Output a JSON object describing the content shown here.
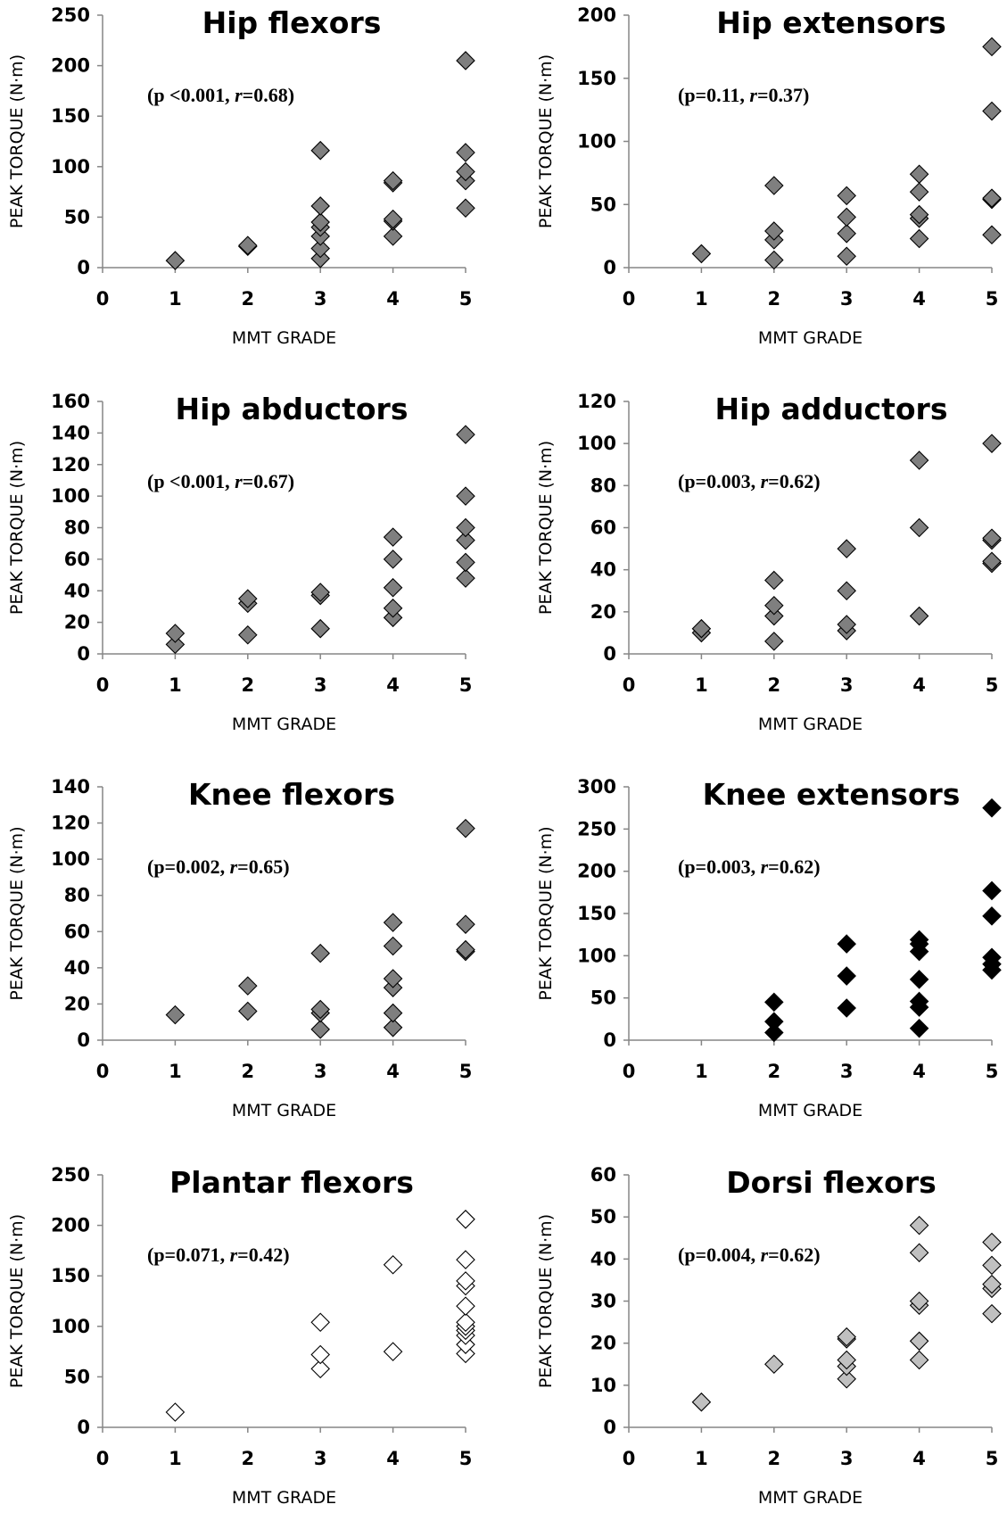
{
  "chart_data": [
    {
      "type": "scatter",
      "title": "Hip flexors",
      "xlabel": "MMT GRADE",
      "ylabel": "PEAK TORQUE (N·m)",
      "annotation": {
        "prefix": "(p <0.001, ",
        "r_symbol": "r",
        "suffix": "=0.68)"
      },
      "xlim": [
        0,
        5
      ],
      "ylim": [
        0,
        250
      ],
      "yticks": [
        0,
        50,
        100,
        150,
        200,
        250
      ],
      "xticks": [
        0,
        1,
        2,
        3,
        4,
        5
      ],
      "marker_fill": "#7f7f7f",
      "points": [
        [
          1,
          7
        ],
        [
          2,
          21
        ],
        [
          2,
          22
        ],
        [
          3,
          9
        ],
        [
          3,
          19
        ],
        [
          3,
          31
        ],
        [
          3,
          40
        ],
        [
          3,
          45
        ],
        [
          3,
          61
        ],
        [
          3,
          116
        ],
        [
          4,
          31
        ],
        [
          4,
          46
        ],
        [
          4,
          48
        ],
        [
          4,
          84
        ],
        [
          4,
          86
        ],
        [
          5,
          59
        ],
        [
          5,
          86
        ],
        [
          5,
          95
        ],
        [
          5,
          114
        ],
        [
          5,
          205
        ]
      ]
    },
    {
      "type": "scatter",
      "title": "Hip extensors",
      "xlabel": "MMT GRADE",
      "ylabel": "PEAK TORQUE (N·m)",
      "annotation": {
        "prefix": "(p=0.11, ",
        "r_symbol": "r",
        "suffix": "=0.37)"
      },
      "xlim": [
        0,
        5
      ],
      "ylim": [
        0,
        200
      ],
      "yticks": [
        0,
        50,
        100,
        150,
        200
      ],
      "xticks": [
        0,
        1,
        2,
        3,
        4,
        5
      ],
      "marker_fill": "#7f7f7f",
      "points": [
        [
          1,
          11
        ],
        [
          2,
          6
        ],
        [
          2,
          22
        ],
        [
          2,
          29
        ],
        [
          2,
          65
        ],
        [
          3,
          9
        ],
        [
          3,
          27
        ],
        [
          3,
          40
        ],
        [
          3,
          57
        ],
        [
          4,
          23
        ],
        [
          4,
          39
        ],
        [
          4,
          42
        ],
        [
          4,
          60
        ],
        [
          4,
          74
        ],
        [
          5,
          26
        ],
        [
          5,
          54
        ],
        [
          5,
          55
        ],
        [
          5,
          124
        ],
        [
          5,
          175
        ]
      ]
    },
    {
      "type": "scatter",
      "title": "Hip abductors",
      "xlabel": "MMT GRADE",
      "ylabel": "PEAK TORQUE (N·m)",
      "annotation": {
        "prefix": "(p <0.001, ",
        "r_symbol": "r",
        "suffix": "=0.67)"
      },
      "xlim": [
        0,
        5
      ],
      "ylim": [
        0,
        160
      ],
      "yticks": [
        0,
        20,
        40,
        60,
        80,
        100,
        120,
        140,
        160
      ],
      "xticks": [
        0,
        1,
        2,
        3,
        4,
        5
      ],
      "marker_fill": "#7f7f7f",
      "points": [
        [
          1,
          6
        ],
        [
          1,
          13
        ],
        [
          2,
          12
        ],
        [
          2,
          32
        ],
        [
          2,
          35
        ],
        [
          3,
          16
        ],
        [
          3,
          37
        ],
        [
          3,
          39
        ],
        [
          4,
          23
        ],
        [
          4,
          29
        ],
        [
          4,
          42
        ],
        [
          4,
          60
        ],
        [
          4,
          74
        ],
        [
          5,
          48
        ],
        [
          5,
          58
        ],
        [
          5,
          72
        ],
        [
          5,
          80
        ],
        [
          5,
          100
        ],
        [
          5,
          139
        ]
      ]
    },
    {
      "type": "scatter",
      "title": "Hip adductors",
      "xlabel": "MMT GRADE",
      "ylabel": "PEAK TORQUE (N·m)",
      "annotation": {
        "prefix": "(p=0.003, ",
        "r_symbol": "r",
        "suffix": "=0.62)"
      },
      "xlim": [
        0,
        5
      ],
      "ylim": [
        0,
        120
      ],
      "yticks": [
        0,
        20,
        40,
        60,
        80,
        100,
        120
      ],
      "xticks": [
        0,
        1,
        2,
        3,
        4,
        5
      ],
      "marker_fill": "#7f7f7f",
      "points": [
        [
          1,
          10
        ],
        [
          1,
          12
        ],
        [
          2,
          6
        ],
        [
          2,
          18
        ],
        [
          2,
          23
        ],
        [
          2,
          35
        ],
        [
          3,
          11
        ],
        [
          3,
          14
        ],
        [
          3,
          30
        ],
        [
          3,
          50
        ],
        [
          4,
          18
        ],
        [
          4,
          60
        ],
        [
          4,
          92
        ],
        [
          5,
          43
        ],
        [
          5,
          44
        ],
        [
          5,
          54
        ],
        [
          5,
          55
        ],
        [
          5,
          100
        ]
      ]
    },
    {
      "type": "scatter",
      "title": "Knee flexors",
      "xlabel": "MMT GRADE",
      "ylabel": "PEAK TORQUE (N·m)",
      "annotation": {
        "prefix": "(p=0.002, ",
        "r_symbol": "r",
        "suffix": "=0.65)"
      },
      "xlim": [
        0,
        5
      ],
      "ylim": [
        0,
        140
      ],
      "yticks": [
        0,
        20,
        40,
        60,
        80,
        100,
        120,
        140
      ],
      "xticks": [
        0,
        1,
        2,
        3,
        4,
        5
      ],
      "marker_fill": "#7f7f7f",
      "points": [
        [
          1,
          14
        ],
        [
          2,
          16
        ],
        [
          2,
          30
        ],
        [
          3,
          6
        ],
        [
          3,
          15
        ],
        [
          3,
          17
        ],
        [
          3,
          48
        ],
        [
          4,
          7
        ],
        [
          4,
          15
        ],
        [
          4,
          29
        ],
        [
          4,
          34
        ],
        [
          4,
          52
        ],
        [
          4,
          65
        ],
        [
          5,
          49
        ],
        [
          5,
          50
        ],
        [
          5,
          64
        ],
        [
          5,
          117
        ]
      ]
    },
    {
      "type": "scatter",
      "title": "Knee extensors",
      "xlabel": "MMT GRADE",
      "ylabel": "PEAK TORQUE (N·m)",
      "annotation": {
        "prefix": "(p=0.003, ",
        "r_symbol": "r",
        "suffix": "=0.62)"
      },
      "xlim": [
        0,
        5
      ],
      "ylim": [
        0,
        300
      ],
      "yticks": [
        0,
        50,
        100,
        150,
        200,
        250,
        300
      ],
      "xticks": [
        0,
        1,
        2,
        3,
        4,
        5
      ],
      "marker_fill": "#000000",
      "points": [
        [
          2,
          9
        ],
        [
          2,
          22
        ],
        [
          2,
          45
        ],
        [
          3,
          38
        ],
        [
          3,
          76
        ],
        [
          3,
          114
        ],
        [
          4,
          14
        ],
        [
          4,
          39
        ],
        [
          4,
          46
        ],
        [
          4,
          72
        ],
        [
          4,
          105
        ],
        [
          4,
          114
        ],
        [
          4,
          119
        ],
        [
          5,
          83
        ],
        [
          5,
          90
        ],
        [
          5,
          98
        ],
        [
          5,
          147
        ],
        [
          5,
          177
        ],
        [
          5,
          275
        ]
      ]
    },
    {
      "type": "scatter",
      "title": "Plantar flexors",
      "xlabel": "MMT GRADE",
      "ylabel": "PEAK TORQUE (N·m)",
      "annotation": {
        "prefix": "(p=0.071, ",
        "r_symbol": "r",
        "suffix": "=0.42)"
      },
      "xlim": [
        0,
        5
      ],
      "ylim": [
        0,
        250
      ],
      "yticks": [
        0,
        50,
        100,
        150,
        200,
        250
      ],
      "xticks": [
        0,
        1,
        2,
        3,
        4,
        5
      ],
      "marker_fill": "#ffffff",
      "points": [
        [
          1,
          15
        ],
        [
          3,
          58
        ],
        [
          3,
          72
        ],
        [
          3,
          104
        ],
        [
          4,
          75
        ],
        [
          4,
          161
        ],
        [
          5,
          73
        ],
        [
          5,
          82
        ],
        [
          5,
          91
        ],
        [
          5,
          96
        ],
        [
          5,
          100
        ],
        [
          5,
          104
        ],
        [
          5,
          120
        ],
        [
          5,
          140
        ],
        [
          5,
          145
        ],
        [
          5,
          166
        ],
        [
          5,
          206
        ]
      ]
    },
    {
      "type": "scatter",
      "title": "Dorsi flexors",
      "xlabel": "MMT GRADE",
      "ylabel": "PEAK TORQUE (N·m)",
      "annotation": {
        "prefix": "(p=0.004, ",
        "r_symbol": "r",
        "suffix": "=0.62)"
      },
      "xlim": [
        0,
        5
      ],
      "ylim": [
        0,
        60
      ],
      "yticks": [
        0,
        10,
        20,
        30,
        40,
        50,
        60
      ],
      "xticks": [
        0,
        1,
        2,
        3,
        4,
        5
      ],
      "marker_fill": "#c0c0c0",
      "points": [
        [
          1,
          6
        ],
        [
          2,
          15
        ],
        [
          3,
          11.5
        ],
        [
          3,
          14.5
        ],
        [
          3,
          16
        ],
        [
          3,
          21
        ],
        [
          3,
          21.5
        ],
        [
          4,
          16
        ],
        [
          4,
          20.5
        ],
        [
          4,
          29
        ],
        [
          4,
          30
        ],
        [
          4,
          41.5
        ],
        [
          4,
          48
        ],
        [
          5,
          27
        ],
        [
          5,
          33
        ],
        [
          5,
          34
        ],
        [
          5,
          38.5
        ],
        [
          5,
          44
        ]
      ]
    }
  ]
}
